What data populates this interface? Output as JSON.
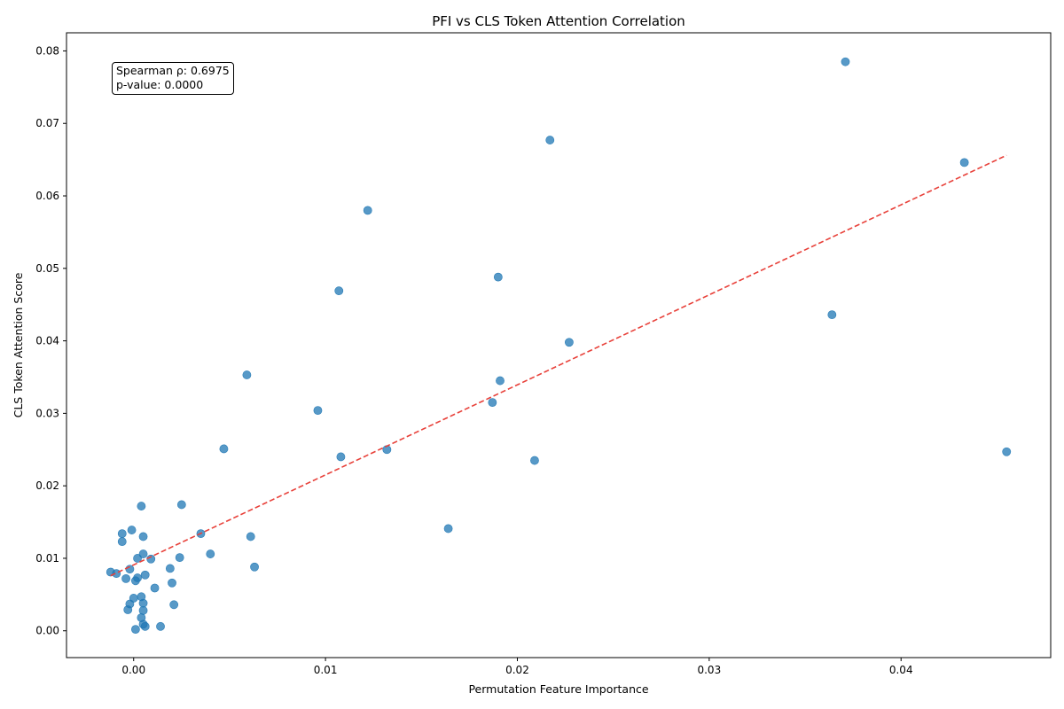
{
  "chart_data": {
    "type": "scatter",
    "title": "PFI vs CLS Token Attention Correlation",
    "xlabel": "Permutation Feature Importance",
    "ylabel": "CLS Token Attention Score",
    "xlim": [
      -0.0035,
      0.0478
    ],
    "ylim": [
      -0.0037,
      0.0825
    ],
    "x_ticks": [
      0.0,
      0.01,
      0.02,
      0.03,
      0.04
    ],
    "x_tick_labels": [
      "0.00",
      "0.01",
      "0.02",
      "0.03",
      "0.04"
    ],
    "y_ticks": [
      0.0,
      0.01,
      0.02,
      0.03,
      0.04,
      0.05,
      0.06,
      0.07,
      0.08
    ],
    "y_tick_labels": [
      "0.00",
      "0.01",
      "0.02",
      "0.03",
      "0.04",
      "0.05",
      "0.06",
      "0.07",
      "0.08"
    ],
    "grid": false,
    "point_color": "#1f77b4",
    "trend_color": "#e8413a",
    "trendline": {
      "style": "dashed",
      "x": [
        -0.0012,
        0.0455
      ],
      "y": [
        0.0076,
        0.0656
      ]
    },
    "points": [
      {
        "x": 0.0371,
        "y": 0.0785
      },
      {
        "x": 0.0433,
        "y": 0.0646
      },
      {
        "x": 0.0217,
        "y": 0.0677
      },
      {
        "x": 0.0122,
        "y": 0.058
      },
      {
        "x": 0.019,
        "y": 0.0488
      },
      {
        "x": 0.0107,
        "y": 0.0469
      },
      {
        "x": 0.0364,
        "y": 0.0436
      },
      {
        "x": 0.0227,
        "y": 0.0398
      },
      {
        "x": 0.0059,
        "y": 0.0353
      },
      {
        "x": 0.0191,
        "y": 0.0345
      },
      {
        "x": 0.0187,
        "y": 0.0315
      },
      {
        "x": 0.0096,
        "y": 0.0304
      },
      {
        "x": 0.0047,
        "y": 0.0251
      },
      {
        "x": 0.0132,
        "y": 0.025
      },
      {
        "x": 0.0108,
        "y": 0.024
      },
      {
        "x": 0.0455,
        "y": 0.0247
      },
      {
        "x": 0.0209,
        "y": 0.0235
      },
      {
        "x": 0.0164,
        "y": 0.0141
      },
      {
        "x": 0.0025,
        "y": 0.0174
      },
      {
        "x": 0.0004,
        "y": 0.0172
      },
      {
        "x": 0.0035,
        "y": 0.0134
      },
      {
        "x": 0.0061,
        "y": 0.013
      },
      {
        "x": -0.0006,
        "y": 0.0134
      },
      {
        "x": -0.0001,
        "y": 0.0139
      },
      {
        "x": -0.0006,
        "y": 0.0123
      },
      {
        "x": 0.0005,
        "y": 0.013
      },
      {
        "x": 0.004,
        "y": 0.0106
      },
      {
        "x": 0.0024,
        "y": 0.0101
      },
      {
        "x": 0.0005,
        "y": 0.0106
      },
      {
        "x": 0.0009,
        "y": 0.0099
      },
      {
        "x": 0.0002,
        "y": 0.01
      },
      {
        "x": 0.0063,
        "y": 0.0088
      },
      {
        "x": 0.0019,
        "y": 0.0086
      },
      {
        "x": -0.0002,
        "y": 0.0085
      },
      {
        "x": -0.0012,
        "y": 0.0081
      },
      {
        "x": -0.0009,
        "y": 0.0079
      },
      {
        "x": 0.0006,
        "y": 0.0077
      },
      {
        "x": -0.0004,
        "y": 0.0072
      },
      {
        "x": 0.0002,
        "y": 0.0073
      },
      {
        "x": 0.0001,
        "y": 0.0069
      },
      {
        "x": 0.002,
        "y": 0.0066
      },
      {
        "x": 0.0011,
        "y": 0.0059
      },
      {
        "x": 0.0004,
        "y": 0.0047
      },
      {
        "x": 0.0,
        "y": 0.0045
      },
      {
        "x": -0.0002,
        "y": 0.0037
      },
      {
        "x": 0.0005,
        "y": 0.0038
      },
      {
        "x": 0.0021,
        "y": 0.0036
      },
      {
        "x": -0.0003,
        "y": 0.0029
      },
      {
        "x": 0.0005,
        "y": 0.0028
      },
      {
        "x": 0.0004,
        "y": 0.0018
      },
      {
        "x": 0.0005,
        "y": 0.0009
      },
      {
        "x": 0.0006,
        "y": 0.0006
      },
      {
        "x": 0.0014,
        "y": 0.0006
      },
      {
        "x": 0.0001,
        "y": 0.0002
      }
    ],
    "annotation": {
      "line1": "Spearman ρ: 0.6975",
      "line2": "p-value: 0.0000"
    }
  }
}
